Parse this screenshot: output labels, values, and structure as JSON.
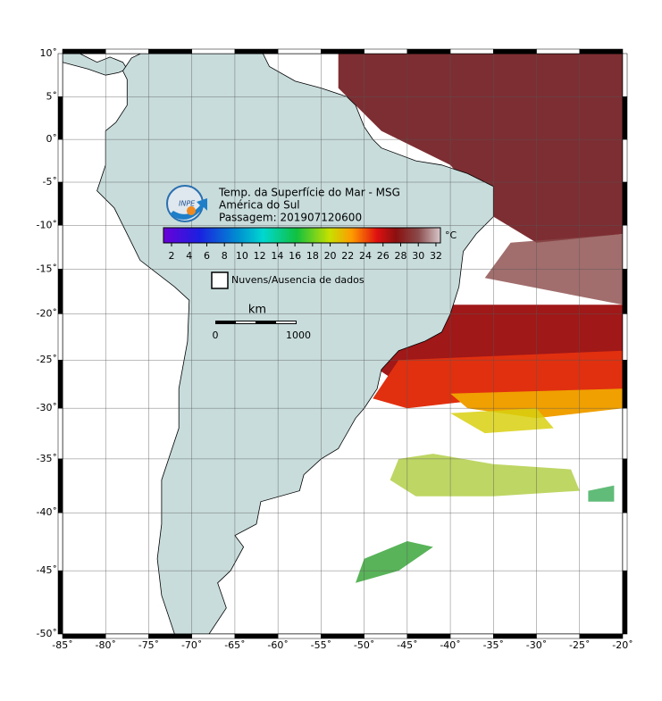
{
  "header": {
    "title_lines": [
      "Temp. da Superfície do Mar - MSG",
      "América do Sul",
      "Passagem: 201907120600"
    ],
    "logo": "INPE"
  },
  "colorbar": {
    "ticks": [
      "2",
      "4",
      "6",
      "8",
      "10",
      "12",
      "14",
      "16",
      "18",
      "20",
      "22",
      "24",
      "26",
      "28",
      "30",
      "32"
    ],
    "unit": "°C"
  },
  "legend": {
    "no_data": "Nuvens/Ausencia de dados"
  },
  "scale_bar": {
    "unit": "km",
    "start": "0",
    "end": "1000"
  },
  "axes": {
    "lat_labels": [
      "10˚",
      "5˚",
      "0˚",
      "-5˚",
      "-10˚",
      "-15˚",
      "-20˚",
      "-25˚",
      "-30˚",
      "-35˚",
      "-40˚",
      "-45˚",
      "-50˚"
    ],
    "lon_labels": [
      "-85˚",
      "-80˚",
      "-75˚",
      "-70˚",
      "-65˚",
      "-60˚",
      "-55˚",
      "-50˚",
      "-45˚",
      "-40˚",
      "-35˚",
      "-30˚",
      "-25˚",
      "-20˚"
    ]
  }
}
